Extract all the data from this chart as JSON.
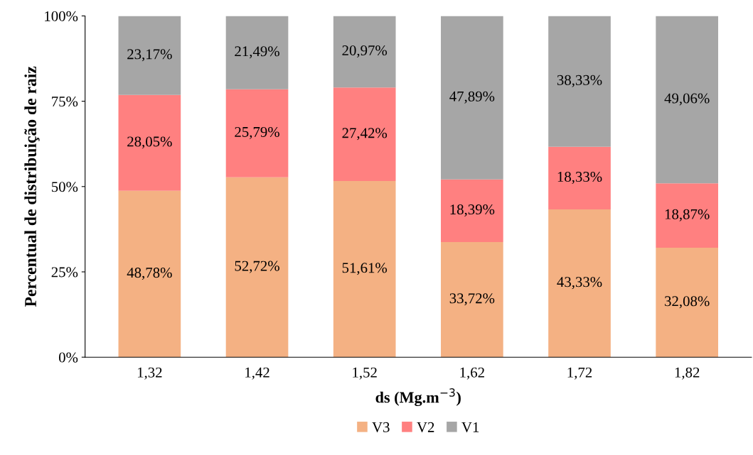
{
  "chart_data": {
    "type": "bar",
    "stacked": true,
    "ylabel": "Percentual de distribuição de raiz",
    "xlabel": "ds (Mg.m$^{−3}$)",
    "categories": [
      "1,32",
      "1,42",
      "1,52",
      "1,62",
      "1,72",
      "1,82"
    ],
    "series": [
      {
        "name": "V3",
        "color": "#f4b183",
        "values": [
          48.78,
          52.72,
          51.61,
          33.72,
          43.33,
          32.08
        ],
        "value_labels": [
          "48,78%",
          "52,72%",
          "51,61%",
          "33,72%",
          "43,33%",
          "32,08%"
        ]
      },
      {
        "name": "V2",
        "color": "#ff8080",
        "values": [
          28.05,
          25.79,
          27.42,
          18.39,
          18.33,
          18.87
        ],
        "value_labels": [
          "28,05%",
          "25,79%",
          "27,42%",
          "18,39%",
          "18,33%",
          "18,87%"
        ]
      },
      {
        "name": "V1",
        "color": "#a6a6a6",
        "values": [
          23.17,
          21.49,
          20.97,
          47.89,
          38.33,
          49.06
        ],
        "value_labels": [
          "23,17%",
          "21,49%",
          "20,97%",
          "47,89%",
          "38,33%",
          "49,06%"
        ]
      }
    ],
    "ylim": [
      0,
      100
    ],
    "yticks": [
      {
        "value": 0,
        "label": "0%"
      },
      {
        "value": 25,
        "label": "25%"
      },
      {
        "value": 50,
        "label": "50%"
      },
      {
        "value": 75,
        "label": "75%"
      },
      {
        "value": 100,
        "label": "100%"
      }
    ],
    "grid": false,
    "legend": "bottom"
  }
}
